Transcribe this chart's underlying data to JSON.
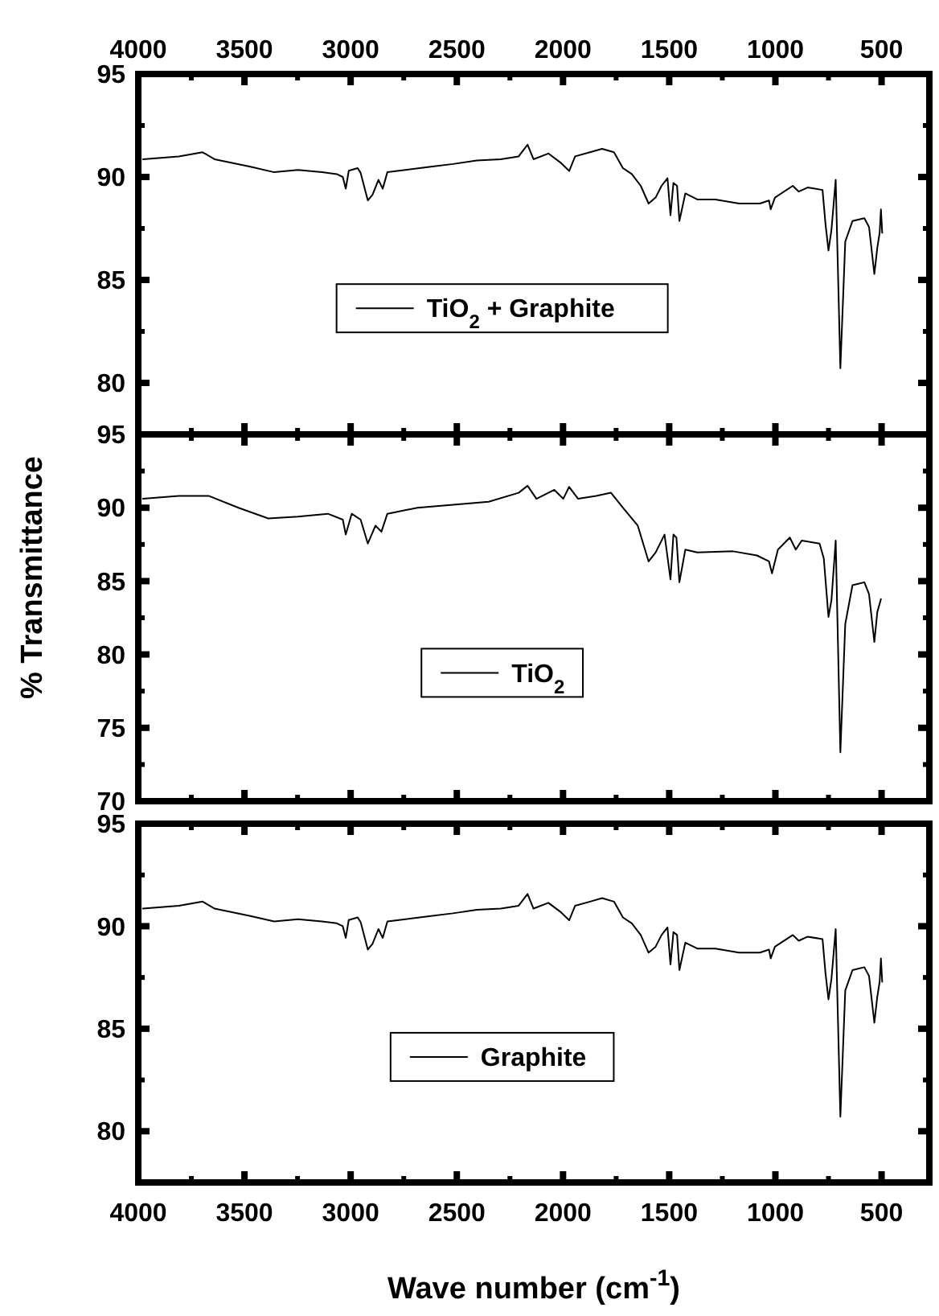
{
  "chart_data": [
    {
      "type": "line",
      "xlim": [
        4000,
        275
      ],
      "ylim": [
        77.5,
        95
      ],
      "tick_labels": "y",
      "legend": "center",
      "x2lim": [
        4000,
        275
      ],
      "x2ticks": [
        4000,
        3500,
        3000,
        2500,
        2000,
        1500,
        1000,
        500
      ],
      "xticks": [
        4000,
        {
          "value": 3750,
          "label": null
        },
        3500,
        {
          "value": 3250,
          "label": null
        },
        3000,
        {
          "value": 2750,
          "label": null
        },
        2500,
        {
          "value": 2250,
          "label": null
        },
        2000,
        {
          "value": 1750,
          "label": null
        },
        1500,
        {
          "value": 1250,
          "label": null
        },
        1000,
        {
          "value": 750,
          "label": null
        },
        500
      ],
      "yticks": [
        80,
        {
          "value": 82.5,
          "label": null
        },
        85,
        {
          "value": 87.5,
          "label": null
        },
        90,
        {
          "value": 92.5,
          "label": null
        },
        95
      ],
      "series": [
        {
          "name": "TiO$_{2}$ + Graphite",
          "color": "#000000",
          "x": [
            3978,
            3809,
            3697,
            3641,
            3472,
            3360,
            3248,
            3135,
            3065,
            3037,
            3023,
            3009,
            2967,
            2953,
            2919,
            2897,
            2869,
            2849,
            2827,
            2742,
            2630,
            2518,
            2406,
            2293,
            2209,
            2167,
            2139,
            2069,
            2013,
            1971,
            1943,
            1873,
            1816,
            1760,
            1718,
            1676,
            1634,
            1597,
            1564,
            1536,
            1508,
            1494,
            1480,
            1463,
            1452,
            1424,
            1368,
            1283,
            1171,
            1073,
            1030,
            1022,
            1002,
            918,
            890,
            848,
            778,
            764,
            750,
            736,
            716,
            694,
            671,
            637,
            581,
            559,
            534,
            520,
            509,
            503,
            497
          ],
          "values": [
            90.86,
            91.0,
            91.2,
            90.86,
            90.5,
            90.23,
            90.34,
            90.23,
            90.14,
            90.0,
            89.43,
            90.3,
            90.43,
            90.2,
            88.86,
            89.14,
            89.86,
            89.43,
            90.23,
            90.34,
            90.49,
            90.63,
            90.8,
            90.86,
            91.0,
            91.57,
            90.86,
            91.14,
            90.71,
            90.29,
            91.0,
            91.2,
            91.37,
            91.2,
            90.43,
            90.14,
            89.57,
            88.71,
            89.0,
            89.57,
            89.94,
            88.14,
            89.71,
            89.57,
            87.86,
            89.2,
            88.91,
            88.91,
            88.71,
            88.71,
            88.86,
            88.43,
            89.0,
            89.57,
            89.29,
            89.49,
            89.37,
            87.71,
            86.43,
            87.43,
            89.86,
            80.71,
            86.86,
            87.86,
            88.0,
            87.57,
            85.29,
            86.57,
            87.29,
            88.43,
            87.29
          ]
        }
      ]
    },
    {
      "type": "line",
      "xlim": [
        4000,
        275
      ],
      "ylim": [
        70,
        95
      ],
      "tick_labels": "y",
      "legend": "center",
      "ylabel": "% Transmittance",
      "xticks": [
        4000,
        {
          "value": 3750,
          "label": null
        },
        3500,
        {
          "value": 3250,
          "label": null
        },
        3000,
        {
          "value": 2750,
          "label": null
        },
        2500,
        {
          "value": 2250,
          "label": null
        },
        2000,
        {
          "value": 1750,
          "label": null
        },
        1500,
        {
          "value": 1250,
          "label": null
        },
        1000,
        {
          "value": 750,
          "label": null
        },
        500
      ],
      "yticks": [
        70,
        {
          "value": 72.5,
          "label": null
        },
        75,
        {
          "value": 77.5,
          "label": null
        },
        80,
        {
          "value": 82.5,
          "label": null
        },
        85,
        {
          "value": 87.5,
          "label": null
        },
        90,
        {
          "value": 92.5,
          "label": null
        },
        95
      ],
      "series": [
        {
          "name": "TiO$_{2}$",
          "color": "#000000",
          "x": [
            3978,
            3809,
            3669,
            3528,
            3388,
            3248,
            3107,
            3037,
            3023,
            2995,
            2953,
            2919,
            2883,
            2855,
            2827,
            2686,
            2518,
            2350,
            2209,
            2167,
            2125,
            2041,
            1999,
            1971,
            1929,
            1844,
            1774,
            1718,
            1648,
            1597,
            1564,
            1522,
            1494,
            1480,
            1466,
            1452,
            1424,
            1368,
            1199,
            1087,
            1030,
            1016,
            988,
            932,
            904,
            876,
            792,
            772,
            750,
            736,
            716,
            694,
            671,
            637,
            581,
            559,
            534,
            520,
            503
          ],
          "values": [
            90.61,
            90.81,
            90.81,
            90.0,
            89.27,
            89.39,
            89.59,
            89.19,
            88.17,
            89.59,
            89.19,
            87.56,
            88.78,
            88.37,
            89.59,
            90.0,
            90.2,
            90.41,
            91.02,
            91.5,
            90.61,
            91.22,
            90.61,
            91.42,
            90.61,
            90.81,
            91.02,
            90.0,
            88.78,
            86.34,
            86.95,
            88.17,
            85.12,
            88.17,
            87.97,
            84.92,
            87.15,
            86.95,
            87.03,
            86.75,
            86.34,
            85.53,
            87.15,
            87.97,
            87.15,
            87.76,
            87.56,
            86.54,
            82.56,
            83.7,
            87.76,
            73.33,
            82.07,
            84.72,
            84.92,
            84.11,
            80.85,
            82.89,
            83.78
          ]
        }
      ]
    },
    {
      "type": "line",
      "xlim": [
        4000,
        275
      ],
      "ylim": [
        77.5,
        95
      ],
      "legend": "center",
      "xlabel": "Wave number (cm$^{-1}$)",
      "xticks": [
        4000,
        {
          "value": 3750,
          "label": null
        },
        3500,
        {
          "value": 3250,
          "label": null
        },
        3000,
        {
          "value": 2750,
          "label": null
        },
        2500,
        {
          "value": 2250,
          "label": null
        },
        2000,
        {
          "value": 1750,
          "label": null
        },
        1500,
        {
          "value": 1250,
          "label": null
        },
        1000,
        {
          "value": 750,
          "label": null
        },
        500
      ],
      "yticks": [
        80,
        {
          "value": 82.5,
          "label": null
        },
        85,
        {
          "value": 87.5,
          "label": null
        },
        90,
        {
          "value": 92.5,
          "label": null
        },
        95
      ],
      "series": [
        {
          "name": "Graphite",
          "color": "#000000",
          "x": [
            3978,
            3809,
            3697,
            3641,
            3472,
            3360,
            3248,
            3135,
            3065,
            3037,
            3023,
            3009,
            2967,
            2953,
            2919,
            2897,
            2869,
            2849,
            2827,
            2742,
            2630,
            2518,
            2406,
            2293,
            2209,
            2167,
            2139,
            2069,
            2013,
            1971,
            1943,
            1873,
            1816,
            1760,
            1718,
            1676,
            1634,
            1597,
            1564,
            1536,
            1508,
            1494,
            1480,
            1463,
            1452,
            1424,
            1368,
            1283,
            1171,
            1073,
            1030,
            1022,
            1002,
            918,
            890,
            848,
            778,
            764,
            750,
            736,
            716,
            694,
            671,
            637,
            581,
            559,
            534,
            520,
            509,
            503,
            497
          ],
          "values": [
            90.86,
            91.0,
            91.2,
            90.86,
            90.5,
            90.23,
            90.34,
            90.23,
            90.14,
            90.0,
            89.43,
            90.3,
            90.43,
            90.2,
            88.86,
            89.14,
            89.86,
            89.43,
            90.23,
            90.34,
            90.49,
            90.63,
            90.8,
            90.86,
            91.0,
            91.57,
            90.86,
            91.14,
            90.71,
            90.29,
            91.0,
            91.2,
            91.37,
            91.2,
            90.43,
            90.14,
            89.57,
            88.71,
            89.0,
            89.57,
            89.94,
            88.14,
            89.71,
            89.57,
            87.86,
            89.2,
            88.91,
            88.91,
            88.71,
            88.71,
            88.86,
            88.43,
            89.0,
            89.57,
            89.29,
            89.49,
            89.37,
            87.71,
            86.43,
            87.43,
            89.86,
            80.71,
            86.86,
            87.86,
            88.0,
            87.57,
            85.29,
            86.57,
            87.29,
            88.43,
            87.29
          ]
        }
      ]
    }
  ]
}
